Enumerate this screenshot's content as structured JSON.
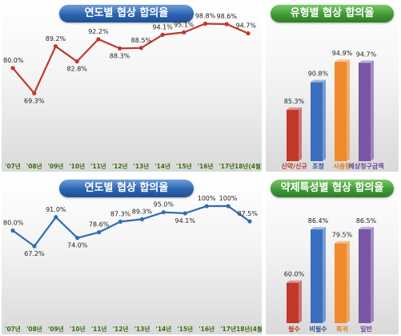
{
  "chart_data": [
    {
      "type": "line",
      "title": "연도별 협상 합의율",
      "categories": [
        "'07년",
        "'08년",
        "'09년",
        "'10년",
        "'11년",
        "'12년",
        "'13년",
        "'14년",
        "'15년",
        "'16년",
        "'17년",
        "'18년(4월)"
      ],
      "series": [
        {
          "values": [
            80.0,
            69.3,
            89.2,
            82.8,
            92.2,
            88.3,
            88.5,
            94.1,
            95.1,
            98.8,
            98.6,
            94.7
          ]
        }
      ],
      "labels": [
        "80.0%",
        "69.3%",
        "89.2%",
        "82.8%",
        "92.2%",
        "88.3%",
        "88.5%",
        "94.1%",
        "95.1%",
        "98.8%",
        "98.6%",
        "94.7%"
      ],
      "ylim": [
        66,
        100
      ],
      "color": "#c0392b",
      "grid": false
    },
    {
      "type": "bar",
      "title": "유형별 협상 합의율",
      "categories": [
        "신약/신규",
        "조정",
        "사용량",
        "예상청구금액"
      ],
      "values": [
        85.3,
        90.8,
        94.9,
        94.7
      ],
      "labels": [
        "85.3%",
        "90.8%",
        "94.9%",
        "94.7%"
      ],
      "ylim": [
        75,
        97
      ],
      "colors": [
        "#c0392b",
        "#3a6fbf",
        "#f08a2c",
        "#7a56a6"
      ],
      "label_colors": [
        "#c0392b",
        "#1f4f93",
        "#e07a10",
        "#6b4796"
      ]
    },
    {
      "type": "line",
      "title": "연도별 협상 합의율",
      "categories": [
        "'07년",
        "'08년",
        "'09년",
        "'10년",
        "'11년",
        "'12년",
        "'13년",
        "'14년",
        "'15년",
        "'16년",
        "'17년",
        "'18년(4월)"
      ],
      "series": [
        {
          "values": [
            80.0,
            67.2,
            91.0,
            74.0,
            78.6,
            87.3,
            89.3,
            95.0,
            94.1,
            100,
            100,
            87.5
          ]
        }
      ],
      "labels": [
        "80.0%",
        "67.2%",
        "91.0%",
        "74.0%",
        "78.6%",
        "87.3%",
        "89.3%",
        "95.0%",
        "94.1%",
        "100%",
        "100%",
        "87.5%"
      ],
      "ylim": [
        60,
        102
      ],
      "color": "#2f6db5",
      "grid": false
    },
    {
      "type": "bar",
      "title": "약제특성별 협상 합의율",
      "categories": [
        "필수",
        "비필수",
        "희귀",
        "일반"
      ],
      "values": [
        60.0,
        86.4,
        79.5,
        86.5
      ],
      "labels": [
        "60.0%",
        "86.4%",
        "79.5%",
        "86.5%"
      ],
      "ylim": [
        40,
        90
      ],
      "colors": [
        "#c0392b",
        "#3a6fbf",
        "#f08a2c",
        "#7a56a6"
      ],
      "label_colors": [
        "#c0392b",
        "#1f4f93",
        "#e07a10",
        "#6b4796"
      ]
    }
  ]
}
